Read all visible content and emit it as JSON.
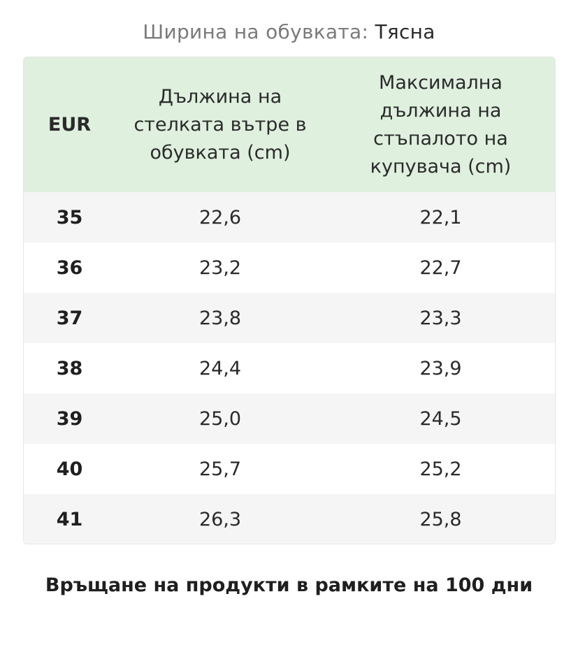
{
  "width_info": {
    "label": "Ширина на обувката:",
    "value": "Тясна"
  },
  "table": {
    "headers": {
      "eur": "EUR",
      "insole_length": "Дължина на стелката вътре в обувката (cm)",
      "max_foot_length": "Максимална дължина на стъпалото на купувача (cm)"
    },
    "rows": [
      {
        "size": "35",
        "insole": "22,6",
        "foot": "22,1"
      },
      {
        "size": "36",
        "insole": "23,2",
        "foot": "22,7"
      },
      {
        "size": "37",
        "insole": "23,8",
        "foot": "23,3"
      },
      {
        "size": "38",
        "insole": "24,4",
        "foot": "23,9"
      },
      {
        "size": "39",
        "insole": "25,0",
        "foot": "24,5"
      },
      {
        "size": "40",
        "insole": "25,7",
        "foot": "25,2"
      },
      {
        "size": "41",
        "insole": "26,3",
        "foot": "25,8"
      }
    ]
  },
  "returns_text": "Връщане на продукти в рамките на 100 дни",
  "colors": {
    "header_bg": "#dff0de",
    "stripe_bg": "#f5f5f5"
  }
}
